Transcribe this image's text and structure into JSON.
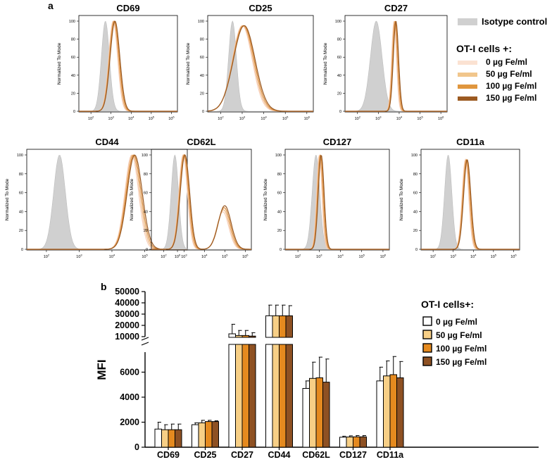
{
  "panel_a": {
    "label": "a",
    "y_axis_label": "Normalized To Mode",
    "y_ticks": [
      "0",
      "20",
      "40",
      "60",
      "80",
      "100"
    ],
    "x_ticks": [
      {
        "base": "10",
        "exp": "2"
      },
      {
        "base": "10",
        "exp": "3"
      },
      {
        "base": "10",
        "exp": "4"
      },
      {
        "base": "10",
        "exp": "5"
      },
      {
        "base": "10",
        "exp": "6"
      }
    ],
    "x_range_log10": [
      1.4,
      6.3
    ],
    "histograms": [
      {
        "marker": "CD69",
        "iso_peak_log": 2.72,
        "iso_sd": 0.2,
        "peaks": [
          {
            "mu": 3.15,
            "sd": 0.23,
            "h": 1.0
          }
        ]
      },
      {
        "marker": "CD25",
        "iso_peak_log": 2.55,
        "iso_sd": 0.18,
        "peaks": [
          {
            "mu": 3.05,
            "sd": 0.48,
            "h": 0.95
          }
        ]
      },
      {
        "marker": "CD27",
        "iso_peak_log": 2.9,
        "iso_sd": 0.28,
        "peaks": [
          {
            "mu": 3.8,
            "sd": 0.12,
            "h": 1.0
          }
        ]
      },
      {
        "marker": "CD44",
        "iso_peak_log": 2.4,
        "iso_sd": 0.18,
        "peaks": [
          {
            "mu": 4.65,
            "sd": 0.22,
            "h": 1.0
          }
        ]
      },
      {
        "marker": "CD62L",
        "iso_peak_log": 2.55,
        "iso_sd": 0.18,
        "peaks": [
          {
            "mu": 3.0,
            "sd": 0.22,
            "h": 1.0
          },
          {
            "mu": 4.95,
            "sd": 0.3,
            "h": 0.43
          }
        ]
      },
      {
        "marker": "CD127",
        "iso_peak_log": 2.85,
        "iso_sd": 0.18,
        "peaks": [
          {
            "mu": 3.05,
            "sd": 0.13,
            "h": 1.0
          }
        ]
      },
      {
        "marker": "CD11a",
        "iso_peak_log": 2.75,
        "iso_sd": 0.18,
        "peaks": [
          {
            "mu": 3.65,
            "sd": 0.17,
            "h": 0.95
          }
        ]
      }
    ],
    "legend": {
      "isotype_label": "Isotype control",
      "group_title": "OT-I cells +:",
      "entries": [
        "0 µg Fe/ml",
        "50 µg Fe/ml",
        "100 µg Fe/ml",
        "150 µg Fe/ml"
      ]
    }
  },
  "panel_b": {
    "label": "b"
  },
  "chart_data": {
    "type": "bar",
    "title": "",
    "xlabel": "",
    "ylabel": "MFI",
    "categories": [
      "CD69",
      "CD25",
      "CD27",
      "CD44",
      "CD62L",
      "CD127",
      "CD11a"
    ],
    "ylim_lower": [
      0,
      7600
    ],
    "ylim_upper": [
      10000,
      50000
    ],
    "yticks_lower": [
      "0",
      "2000",
      "4000",
      "6000"
    ],
    "yticks_upper": [
      "10000",
      "20000",
      "30000",
      "40000",
      "50000"
    ],
    "legend_title": "OT-I cells+:",
    "series": [
      {
        "name": "0 µg Fe/ml",
        "values": [
          1450,
          1800,
          12500,
          28500,
          4700,
          800,
          5300
        ],
        "errors": [
          550,
          150,
          8500,
          9500,
          600,
          80,
          1100
        ]
      },
      {
        "name": "50 µg Fe/ml",
        "values": [
          1400,
          1950,
          11000,
          28500,
          5500,
          820,
          5700
        ],
        "errors": [
          400,
          200,
          4500,
          9500,
          1300,
          90,
          1200
        ]
      },
      {
        "name": "100 µg Fe/ml",
        "values": [
          1400,
          2050,
          11000,
          28500,
          5550,
          830,
          5800
        ],
        "errors": [
          450,
          100,
          4500,
          9500,
          1650,
          100,
          1450
        ]
      },
      {
        "name": "150 µg Fe/ml",
        "values": [
          1400,
          2050,
          10500,
          28500,
          5200,
          830,
          5550
        ],
        "errors": [
          450,
          60,
          3000,
          9000,
          1850,
          100,
          1300
        ]
      }
    ]
  },
  "colors": {
    "isotype": "#d0d0d0",
    "series": [
      "#fbe2d2",
      "#f1c68c",
      "#e0963e",
      "#9c5a21"
    ],
    "bar_fill": [
      "#ffffff",
      "#f7cf86",
      "#e58a1f",
      "#8e5123"
    ],
    "histogram_lines": [
      "#f8cdb6",
      "#eab57d",
      "#d98a3b",
      "#995a24"
    ]
  }
}
